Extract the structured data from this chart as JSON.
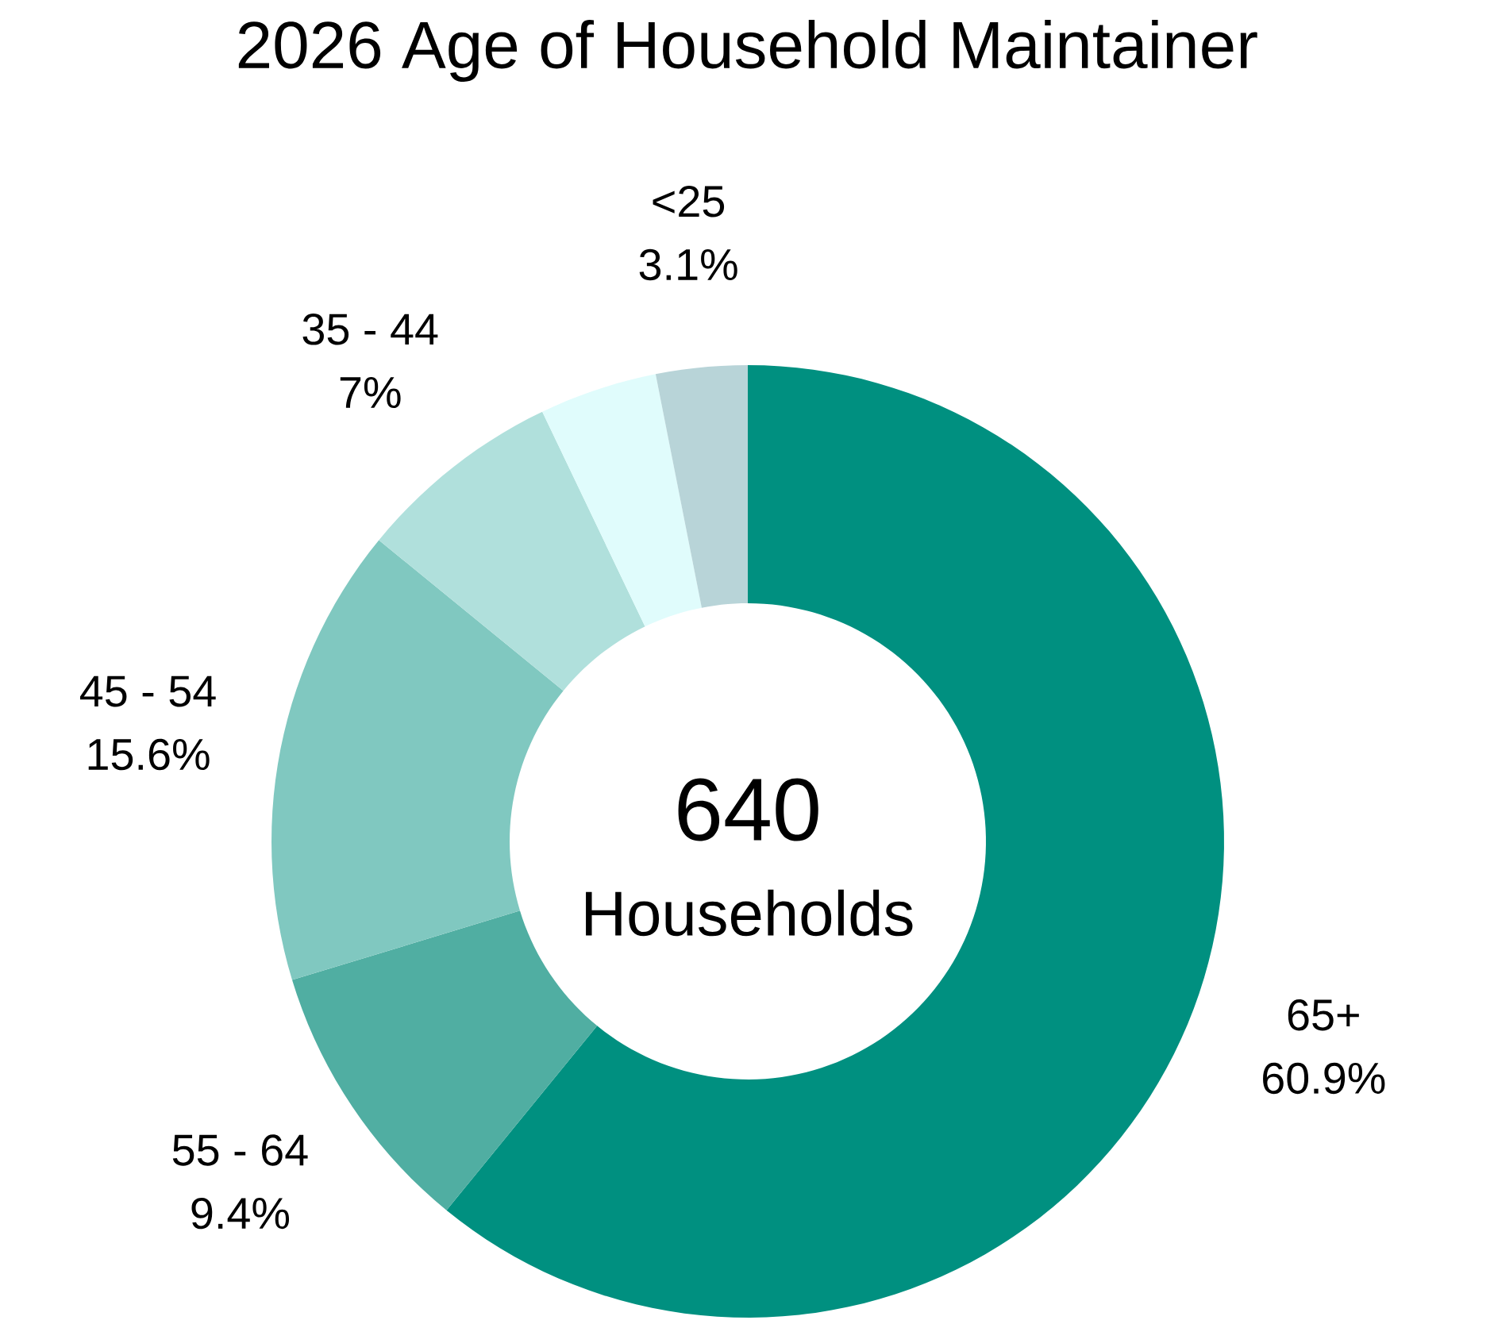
{
  "chart_data": {
    "type": "donut",
    "title": "2026 Age of Household Maintainer",
    "categories": [
      "65+",
      "55 - 64",
      "45 - 54",
      "35 - 44",
      null,
      "<25"
    ],
    "values": [
      60.9,
      9.4,
      15.6,
      7,
      4.0,
      3.1
    ],
    "value_labels": [
      "60.9%",
      "9.4%",
      "15.6%",
      "7%",
      null,
      "3.1%"
    ],
    "colors": [
      "#009080",
      "#50aea2",
      "#80c8c0",
      "#b0e0dc",
      "#e0fcfc",
      "#b8d4d8"
    ],
    "annotations": [
      "640",
      "Households"
    ]
  }
}
